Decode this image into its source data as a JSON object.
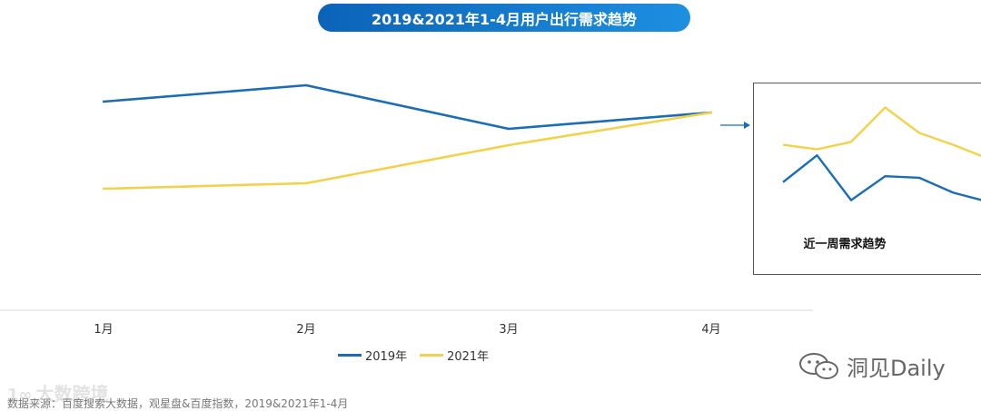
{
  "title": "2019&2021年1-4月用户出行需求趋势",
  "chart_data": {
    "type": "line",
    "title": "2019&2021年1-4月用户出行需求趋势",
    "categories": [
      "1月",
      "2月",
      "3月",
      "4月"
    ],
    "series": [
      {
        "name": "2019年",
        "values": [
          78,
          81,
          73,
          76
        ],
        "color": "#1a6db5"
      },
      {
        "name": "2021年",
        "values": [
          62,
          63,
          70,
          76
        ],
        "color": "#f3d24a"
      }
    ],
    "ylim": [
      40,
      90
    ],
    "xlabel": "",
    "ylabel": "",
    "legend": "bottom-center"
  },
  "inset": {
    "label": "近一周需求趋势",
    "series": [
      {
        "name": "2019年",
        "values": [
          50,
          68,
          38,
          54,
          53,
          43,
          37
        ]
      },
      {
        "name": "2021年",
        "values": [
          75,
          72,
          77,
          100,
          83,
          75,
          66
        ]
      }
    ],
    "ylim": [
      25,
      110
    ]
  },
  "legend": [
    {
      "name": "2019年",
      "color": "#1a6db5"
    },
    {
      "name": "2021年",
      "color": "#f3d24a"
    }
  ],
  "watermark": "大数跨境",
  "watermark_logo": "1∞",
  "source_note": "数据来源：百度搜索大数据，观星盘&百度指数，2019&2021年1-4月",
  "brand": "洞见Daily"
}
